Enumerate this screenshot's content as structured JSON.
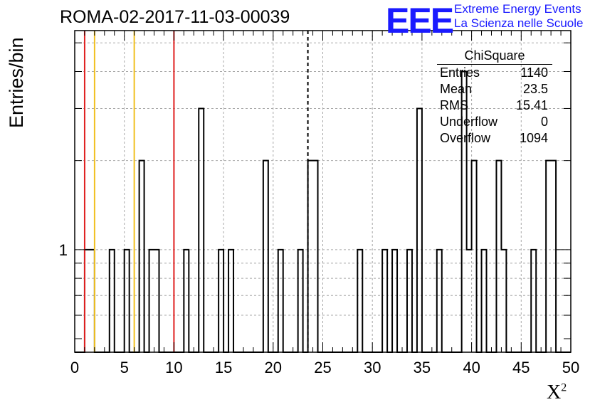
{
  "chart_data": {
    "type": "histogram",
    "title": "ROMA-02-2017-11-03-00039",
    "xlabel": "X",
    "xlabel_superscript": "2",
    "ylabel": "Entries/bin",
    "xlim": [
      0,
      50
    ],
    "ylog": true,
    "ylim": [
      0.45,
      5.5
    ],
    "grid": true,
    "x_ticks": [
      0,
      5,
      10,
      15,
      20,
      25,
      30,
      35,
      40,
      45,
      50
    ],
    "y_tick_labels": [
      "1"
    ],
    "bin_width": 0.5,
    "bins": [
      [
        1.0,
        1
      ],
      [
        1.5,
        1
      ],
      [
        3.5,
        1
      ],
      [
        5.0,
        1
      ],
      [
        6.5,
        2
      ],
      [
        7.5,
        1
      ],
      [
        8.0,
        1
      ],
      [
        11.0,
        1
      ],
      [
        12.5,
        3
      ],
      [
        14.5,
        1
      ],
      [
        15.5,
        1
      ],
      [
        19.0,
        2
      ],
      [
        20.5,
        1
      ],
      [
        22.5,
        1
      ],
      [
        23.5,
        2
      ],
      [
        24.0,
        2
      ],
      [
        28.5,
        1
      ],
      [
        31.0,
        1
      ],
      [
        32.0,
        1
      ],
      [
        33.5,
        1
      ],
      [
        34.5,
        3
      ],
      [
        36.5,
        1
      ],
      [
        39.0,
        4
      ],
      [
        39.5,
        1
      ],
      [
        40.0,
        2
      ],
      [
        41.0,
        1
      ],
      [
        42.5,
        2
      ],
      [
        43.0,
        1
      ],
      [
        46.0,
        1
      ],
      [
        47.5,
        2
      ],
      [
        48.0,
        2
      ]
    ],
    "vertical_lines": [
      {
        "x": 1.0,
        "color": "#e02020",
        "style": "solid"
      },
      {
        "x": 2.0,
        "color": "#f0c020",
        "style": "solid"
      },
      {
        "x": 6.0,
        "color": "#f0c020",
        "style": "solid"
      },
      {
        "x": 10.0,
        "color": "#e02020",
        "style": "solid"
      },
      {
        "x": 23.5,
        "color": "#000000",
        "style": "dashed"
      }
    ],
    "stats_box": {
      "title": "ChiSquare",
      "rows": [
        {
          "label": "Entries",
          "value": "1140"
        },
        {
          "label": "Mean",
          "value": "23.5"
        },
        {
          "label": "RMS",
          "value": "15.41"
        },
        {
          "label": "Underflow",
          "value": "0"
        },
        {
          "label": "Overflow",
          "value": "1094"
        }
      ]
    }
  },
  "logo": {
    "mark": "EEE",
    "line1": "Extreme Energy Events",
    "line2": "La Scienza nelle Scuole"
  },
  "colors": {
    "logo": "#1a1aff",
    "red_line": "#e02020",
    "yellow_line": "#f0c020"
  }
}
